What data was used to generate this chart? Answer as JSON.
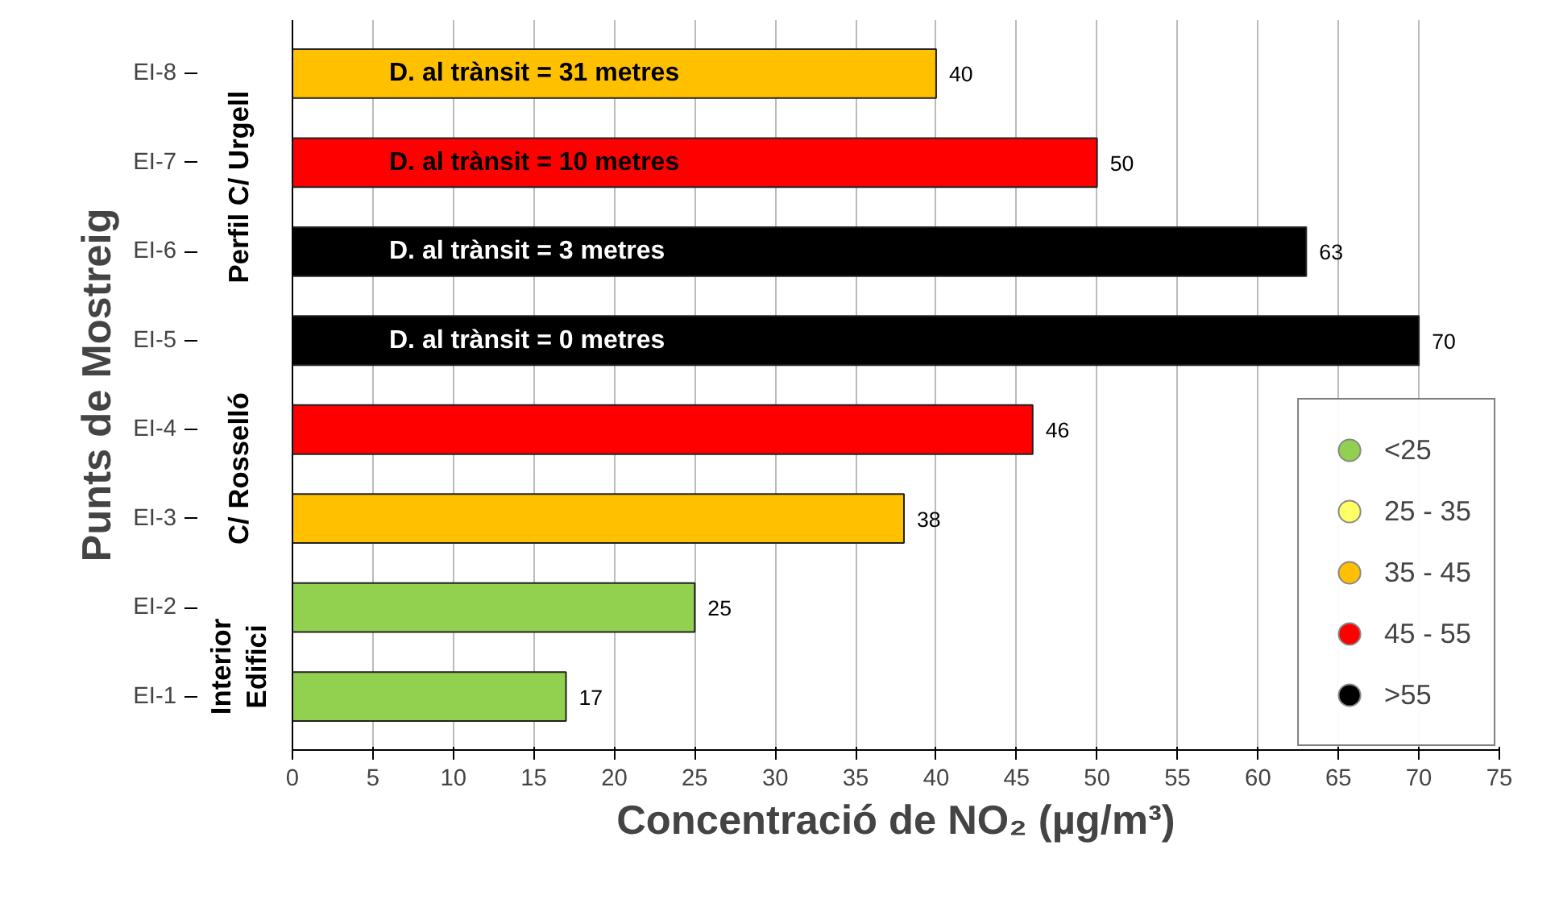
{
  "chart_data": {
    "type": "bar",
    "orientation": "horizontal",
    "xlabel": "Concentració de NO₂ (µg/m³)",
    "ylabel": "Punts de Mostreig",
    "categories": [
      "EI-8",
      "EI-7",
      "EI-6",
      "EI-5",
      "EI-4",
      "EI-3",
      "EI-2",
      "EI-1"
    ],
    "series": [
      {
        "name": "<25",
        "color": "#92d050",
        "values": [
          null,
          null,
          null,
          null,
          null,
          null,
          25,
          17
        ]
      },
      {
        "name": "25 - 35",
        "color": "#ffff66",
        "values": [
          null,
          null,
          null,
          null,
          null,
          null,
          null,
          null
        ]
      },
      {
        "name": "35 - 45",
        "color": "#ffc000",
        "values": [
          40,
          null,
          null,
          null,
          null,
          38,
          null,
          null
        ]
      },
      {
        "name": "45 - 55",
        "color": "#ff0000",
        "values": [
          null,
          50,
          null,
          null,
          46,
          null,
          null,
          null
        ]
      },
      {
        "name": ">55",
        "color": "#000000",
        "values": [
          null,
          null,
          63,
          70,
          null,
          null,
          null,
          null
        ]
      }
    ],
    "xlim": [
      0,
      75
    ],
    "xticks": [
      0,
      5,
      10,
      15,
      20,
      25,
      30,
      35,
      40,
      45,
      50,
      55,
      60,
      65,
      70,
      75
    ],
    "grid": "x",
    "legend": "bottom right",
    "data_labels": true,
    "marker": "circle",
    "annotations": [
      "D. al trànsit = 31 metres",
      "D. al trànsit = 10 metres",
      "D. al trànsit = 3 metres",
      "D. al trànsit = 0 metres",
      "Perfil C/ Urgell",
      "C/ Rosselló",
      "Interior\nEdifici"
    ]
  }
}
